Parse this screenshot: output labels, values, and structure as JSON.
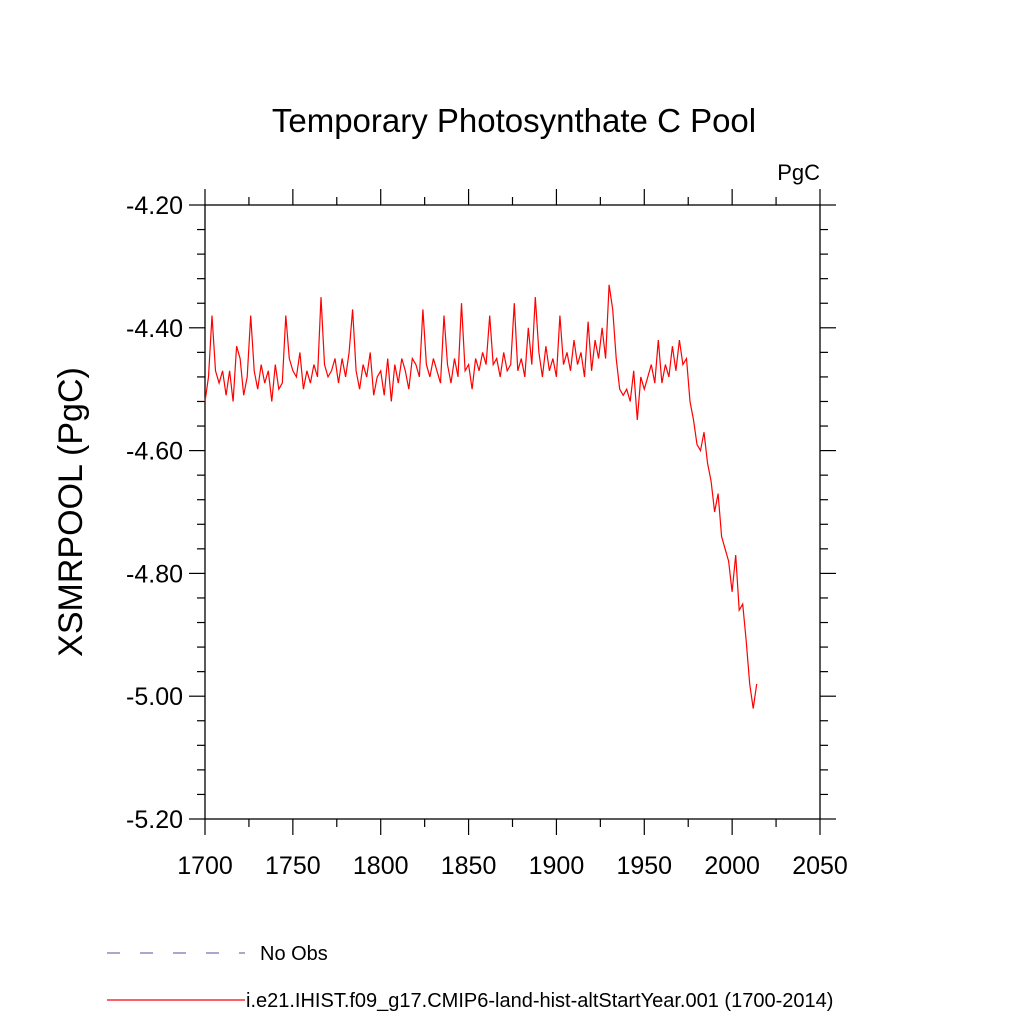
{
  "chart_data": {
    "type": "line",
    "title": "Temporary Photosynthate C Pool",
    "units": "PgC",
    "ylabel": "XSMRPOOL  (PgC)",
    "xlabel": "",
    "xlim": [
      1700,
      2050
    ],
    "ylim": [
      -5.2,
      -4.2
    ],
    "x_ticks": [
      1700,
      1750,
      1800,
      1850,
      1900,
      1950,
      2000,
      2050
    ],
    "x_tick_labels": [
      "1700",
      "1750",
      "1800",
      "1850",
      "1900",
      "1950",
      "2000",
      "2050"
    ],
    "y_ticks": [
      -4.2,
      -4.4,
      -4.6,
      -4.8,
      -5.0,
      -5.2
    ],
    "y_tick_labels": [
      "-4.20",
      "-4.40",
      "-4.60",
      "-4.80",
      "-5.00",
      "-5.20"
    ],
    "grid": false,
    "legend": {
      "placement": "bottom-left",
      "entries": [
        {
          "label": "No Obs",
          "color": "#7b6fb0",
          "style": "dashed"
        },
        {
          "label": "i.e21.IHIST.f09_g17.CMIP6-land-hist-altStartYear.001 (1700-2014)",
          "color": "#ff0000",
          "style": "solid"
        }
      ]
    },
    "series": [
      {
        "name": "i.e21.IHIST.f09_g17.CMIP6-land-hist-altStartYear.001 (1700-2014)",
        "color": "#ff0000",
        "x": [
          1700,
          1702,
          1704,
          1706,
          1708,
          1710,
          1712,
          1714,
          1716,
          1718,
          1720,
          1722,
          1724,
          1726,
          1728,
          1730,
          1732,
          1734,
          1736,
          1738,
          1740,
          1742,
          1744,
          1746,
          1748,
          1750,
          1752,
          1754,
          1756,
          1758,
          1760,
          1762,
          1764,
          1766,
          1768,
          1770,
          1772,
          1774,
          1776,
          1778,
          1780,
          1782,
          1784,
          1786,
          1788,
          1790,
          1792,
          1794,
          1796,
          1798,
          1800,
          1802,
          1804,
          1806,
          1808,
          1810,
          1812,
          1814,
          1816,
          1818,
          1820,
          1822,
          1824,
          1826,
          1828,
          1830,
          1832,
          1834,
          1836,
          1838,
          1840,
          1842,
          1844,
          1846,
          1848,
          1850,
          1852,
          1854,
          1856,
          1858,
          1860,
          1862,
          1864,
          1866,
          1868,
          1870,
          1872,
          1874,
          1876,
          1878,
          1880,
          1882,
          1884,
          1886,
          1888,
          1890,
          1892,
          1894,
          1896,
          1898,
          1900,
          1902,
          1904,
          1906,
          1908,
          1910,
          1912,
          1914,
          1916,
          1918,
          1920,
          1922,
          1924,
          1926,
          1928,
          1930,
          1932,
          1934,
          1936,
          1938,
          1940,
          1942,
          1944,
          1946,
          1948,
          1950,
          1952,
          1954,
          1956,
          1958,
          1960,
          1962,
          1964,
          1966,
          1968,
          1970,
          1972,
          1974,
          1976,
          1978,
          1980,
          1982,
          1984,
          1986,
          1988,
          1990,
          1992,
          1994,
          1996,
          1998,
          2000,
          2002,
          2004,
          2006,
          2008,
          2010,
          2012,
          2014
        ],
        "values": [
          -4.52,
          -4.48,
          -4.38,
          -4.47,
          -4.49,
          -4.47,
          -4.51,
          -4.47,
          -4.52,
          -4.43,
          -4.45,
          -4.51,
          -4.48,
          -4.38,
          -4.47,
          -4.5,
          -4.46,
          -4.49,
          -4.47,
          -4.52,
          -4.46,
          -4.5,
          -4.49,
          -4.38,
          -4.45,
          -4.47,
          -4.48,
          -4.44,
          -4.5,
          -4.47,
          -4.49,
          -4.46,
          -4.48,
          -4.35,
          -4.46,
          -4.48,
          -4.47,
          -4.45,
          -4.49,
          -4.45,
          -4.48,
          -4.44,
          -4.37,
          -4.47,
          -4.5,
          -4.46,
          -4.48,
          -4.44,
          -4.51,
          -4.48,
          -4.47,
          -4.51,
          -4.45,
          -4.52,
          -4.46,
          -4.49,
          -4.45,
          -4.47,
          -4.5,
          -4.45,
          -4.46,
          -4.48,
          -4.37,
          -4.46,
          -4.48,
          -4.45,
          -4.47,
          -4.49,
          -4.38,
          -4.46,
          -4.49,
          -4.45,
          -4.48,
          -4.36,
          -4.47,
          -4.46,
          -4.5,
          -4.45,
          -4.47,
          -4.44,
          -4.46,
          -4.38,
          -4.46,
          -4.45,
          -4.48,
          -4.44,
          -4.47,
          -4.46,
          -4.36,
          -4.47,
          -4.45,
          -4.48,
          -4.4,
          -4.46,
          -4.35,
          -4.44,
          -4.48,
          -4.43,
          -4.47,
          -4.45,
          -4.48,
          -4.38,
          -4.46,
          -4.44,
          -4.47,
          -4.42,
          -4.46,
          -4.44,
          -4.48,
          -4.39,
          -4.47,
          -4.42,
          -4.45,
          -4.4,
          -4.45,
          -4.33,
          -4.37,
          -4.45,
          -4.5,
          -4.51,
          -4.5,
          -4.52,
          -4.47,
          -4.55,
          -4.48,
          -4.5,
          -4.48,
          -4.46,
          -4.49,
          -4.42,
          -4.49,
          -4.46,
          -4.48,
          -4.43,
          -4.47,
          -4.42,
          -4.46,
          -4.45,
          -4.52,
          -4.55,
          -4.59,
          -4.6,
          -4.57,
          -4.62,
          -4.65,
          -4.7,
          -4.67,
          -4.74,
          -4.76,
          -4.78,
          -4.83,
          -4.77,
          -4.86,
          -4.85,
          -4.91,
          -4.98,
          -5.02,
          -4.98
        ]
      }
    ]
  }
}
